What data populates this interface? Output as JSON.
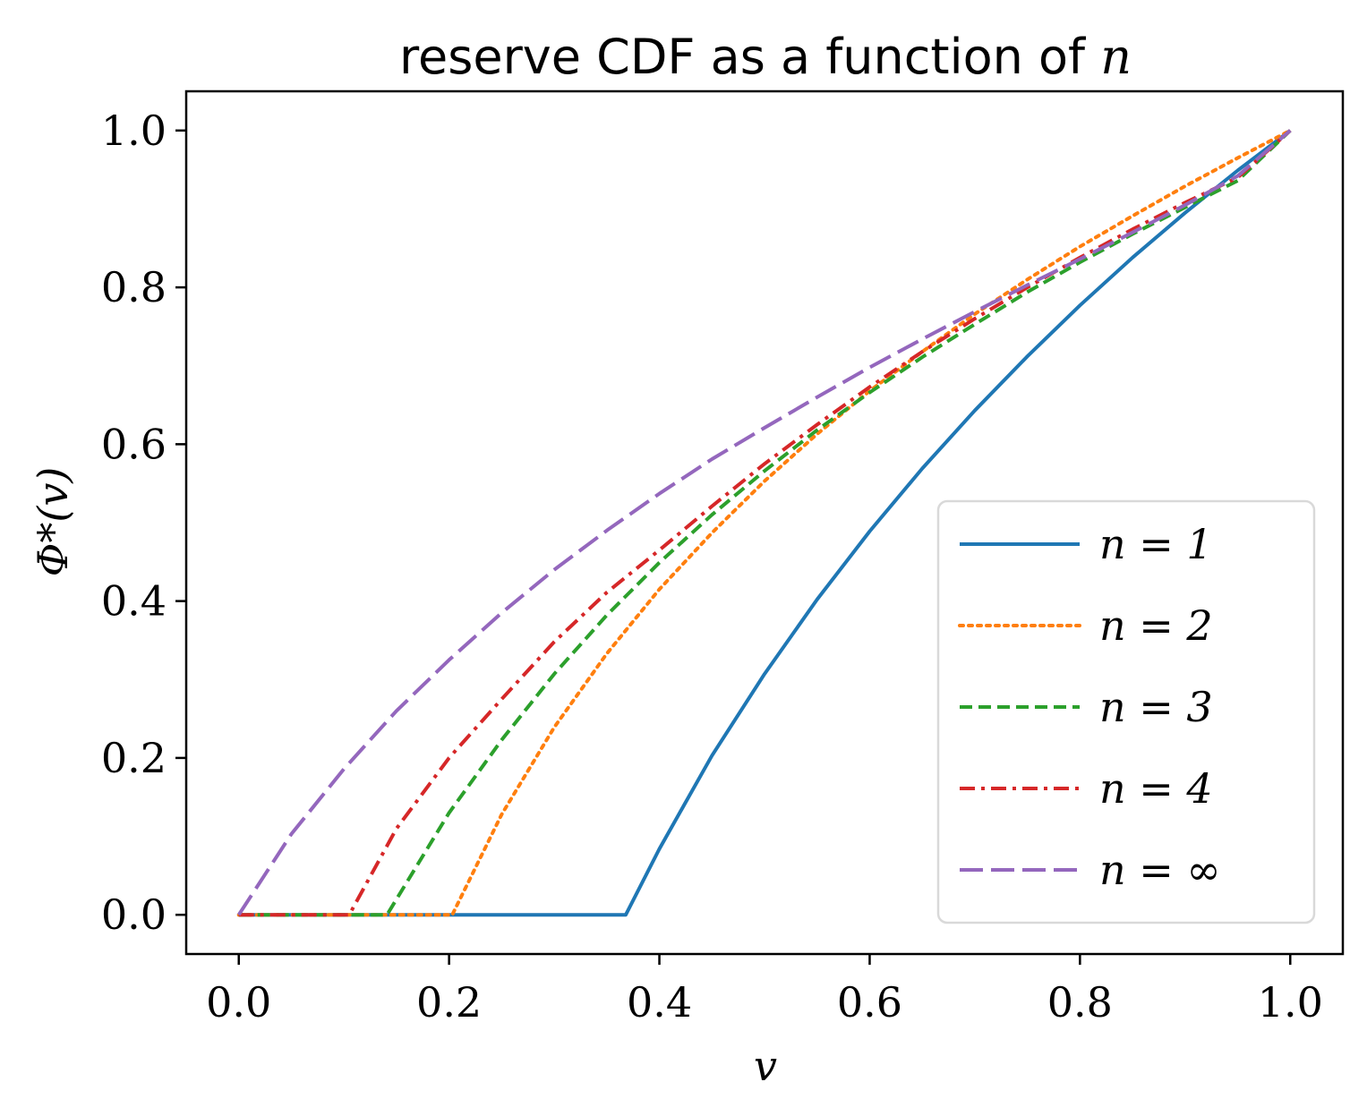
{
  "chart_data": {
    "type": "line",
    "title": "reserve CDF as a function of",
    "title_math": "n",
    "xlabel": "v",
    "ylabel": "Φ*(v)",
    "xlim": [
      -0.05,
      1.05
    ],
    "ylim": [
      -0.05,
      1.05
    ],
    "xticks": [
      0.0,
      0.2,
      0.4,
      0.6,
      0.8,
      1.0
    ],
    "xtick_labels": [
      "0.0",
      "0.2",
      "0.4",
      "0.6",
      "0.8",
      "1.0"
    ],
    "yticks": [
      0.0,
      0.2,
      0.4,
      0.6,
      0.8,
      1.0
    ],
    "ytick_labels": [
      "0.0",
      "0.2",
      "0.4",
      "0.6",
      "0.8",
      "1.0"
    ],
    "legend_location": "lower-right",
    "series": [
      {
        "name": "n = 1",
        "color": "#1f77b4",
        "style": "solid",
        "x": [
          0.0,
          0.368,
          0.4,
          0.45,
          0.5,
          0.55,
          0.6,
          0.65,
          0.7,
          0.75,
          0.8,
          0.85,
          0.9,
          0.95,
          1.0
        ],
        "y": [
          0.0,
          0.0,
          0.084,
          0.203,
          0.307,
          0.402,
          0.489,
          0.569,
          0.643,
          0.712,
          0.777,
          0.838,
          0.895,
          0.949,
          1.0
        ]
      },
      {
        "name": "n = 2",
        "color": "#ff7f0e",
        "style": "dotted",
        "x": [
          0.0,
          0.203,
          0.25,
          0.3,
          0.35,
          0.4,
          0.45,
          0.5,
          0.55,
          0.6,
          0.65,
          0.7,
          0.75,
          0.8,
          0.85,
          0.9,
          0.95,
          1.0
        ],
        "y": [
          0.0,
          0.0,
          0.128,
          0.239,
          0.333,
          0.415,
          0.487,
          0.553,
          0.613,
          0.668,
          0.718,
          0.766,
          0.81,
          0.852,
          0.891,
          0.929,
          0.965,
          1.0
        ]
      },
      {
        "name": "n = 3",
        "color": "#2ca02c",
        "style": "dashed",
        "x": [
          0.0,
          0.141,
          0.2,
          0.25,
          0.3,
          0.35,
          0.4,
          0.45,
          0.5,
          0.55,
          0.6,
          0.65,
          0.7,
          0.75,
          0.8,
          0.85,
          0.9,
          0.95,
          1.0
        ],
        "y": [
          0.0,
          0.0,
          0.13,
          0.223,
          0.307,
          0.382,
          0.449,
          0.51,
          0.566,
          0.618,
          0.666,
          0.711,
          0.753,
          0.794,
          0.832,
          0.868,
          0.902,
          0.936,
          1.0
        ]
      },
      {
        "name": "n = 4",
        "color": "#d62728",
        "style": "dashdot",
        "x": [
          0.0,
          0.105,
          0.15,
          0.2,
          0.25,
          0.3,
          0.35,
          0.4,
          0.45,
          0.5,
          0.55,
          0.6,
          0.65,
          0.7,
          0.75,
          0.8,
          0.85,
          0.9,
          0.95,
          1.0
        ],
        "y": [
          0.0,
          0.0,
          0.11,
          0.2,
          0.275,
          0.348,
          0.411,
          0.465,
          0.521,
          0.575,
          0.625,
          0.673,
          0.718,
          0.76,
          0.8,
          0.838,
          0.874,
          0.908,
          0.94,
          1.0
        ]
      },
      {
        "name": "n = ∞",
        "color": "#9467bd",
        "style": "longdash",
        "x": [
          0.0,
          0.05,
          0.1,
          0.15,
          0.2,
          0.25,
          0.3,
          0.35,
          0.4,
          0.45,
          0.5,
          0.55,
          0.6,
          0.65,
          0.7,
          0.75,
          0.8,
          0.85,
          0.9,
          0.95,
          1.0
        ],
        "y": [
          0.0,
          0.103,
          0.186,
          0.26,
          0.325,
          0.385,
          0.44,
          0.49,
          0.537,
          0.581,
          0.621,
          0.66,
          0.698,
          0.734,
          0.769,
          0.803,
          0.836,
          0.87,
          0.905,
          0.942,
          1.0
        ]
      }
    ]
  }
}
